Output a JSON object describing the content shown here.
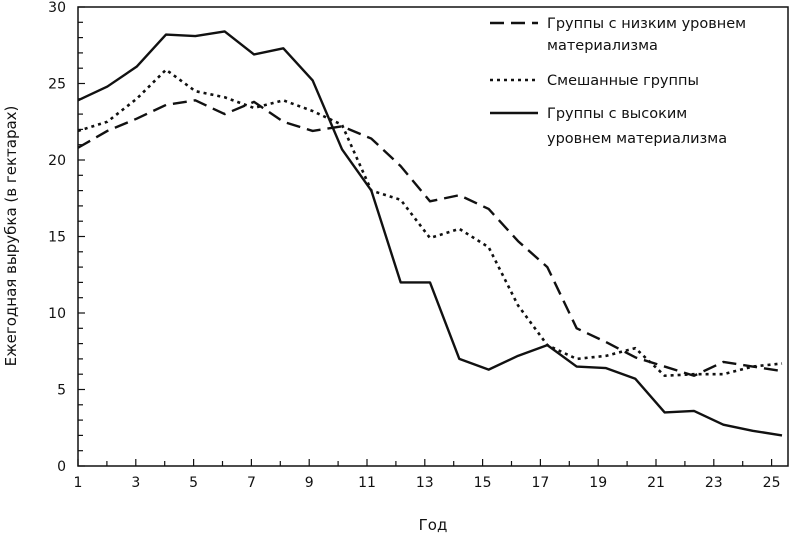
{
  "chart_data": {
    "type": "line",
    "title": "",
    "xlabel": "Год",
    "ylabel": "Ежегодная вырубка (в гектарах)",
    "xlim": [
      1,
      25.4
    ],
    "ylim": [
      0,
      30
    ],
    "xticks": [
      1,
      3,
      5,
      7,
      9,
      11,
      13,
      15,
      17,
      19,
      21,
      23,
      25
    ],
    "yticks": [
      0,
      5,
      10,
      15,
      20,
      25,
      30
    ],
    "grid": false,
    "legend_position": "top-right",
    "x": [
      1,
      2,
      3,
      4,
      5,
      6,
      7,
      8,
      9,
      10,
      11,
      12,
      13,
      14,
      15,
      16,
      17,
      18,
      19,
      20,
      21,
      22,
      23,
      24,
      25
    ],
    "series": [
      {
        "name": "Группы с низким уровнем материализма",
        "style": "dashed",
        "values": [
          20.8,
          21.9,
          22.7,
          23.6,
          23.9,
          23.0,
          23.8,
          22.5,
          21.9,
          22.2,
          21.4,
          19.6,
          17.3,
          17.7,
          16.8,
          14.7,
          13.0,
          9.0,
          8.1,
          7.1,
          6.5,
          5.9,
          6.8,
          6.5,
          6.2
        ]
      },
      {
        "name": "Смешанные группы",
        "style": "dotted",
        "values": [
          21.9,
          22.5,
          24.0,
          25.9,
          24.5,
          24.1,
          23.4,
          23.9,
          23.2,
          22.3,
          18.0,
          17.4,
          14.9,
          15.5,
          14.3,
          10.5,
          7.9,
          7.0,
          7.2,
          7.7,
          5.9,
          6.0,
          6.0,
          6.5,
          6.7
        ]
      },
      {
        "name": "Группы с высоким уровнем материализма",
        "style": "solid",
        "values": [
          23.9,
          24.8,
          26.1,
          28.2,
          28.1,
          28.4,
          26.9,
          27.3,
          25.2,
          20.7,
          18.0,
          12.0,
          12.0,
          7.0,
          6.3,
          7.2,
          7.9,
          6.5,
          6.4,
          5.7,
          3.5,
          3.6,
          2.7,
          2.3,
          2.0
        ]
      }
    ],
    "legend": [
      [
        "Группы с низким уровнем",
        "материализма"
      ],
      [
        "Смешанные группы"
      ],
      [
        "Группы с высоким",
        "уровнем материализма"
      ]
    ]
  }
}
